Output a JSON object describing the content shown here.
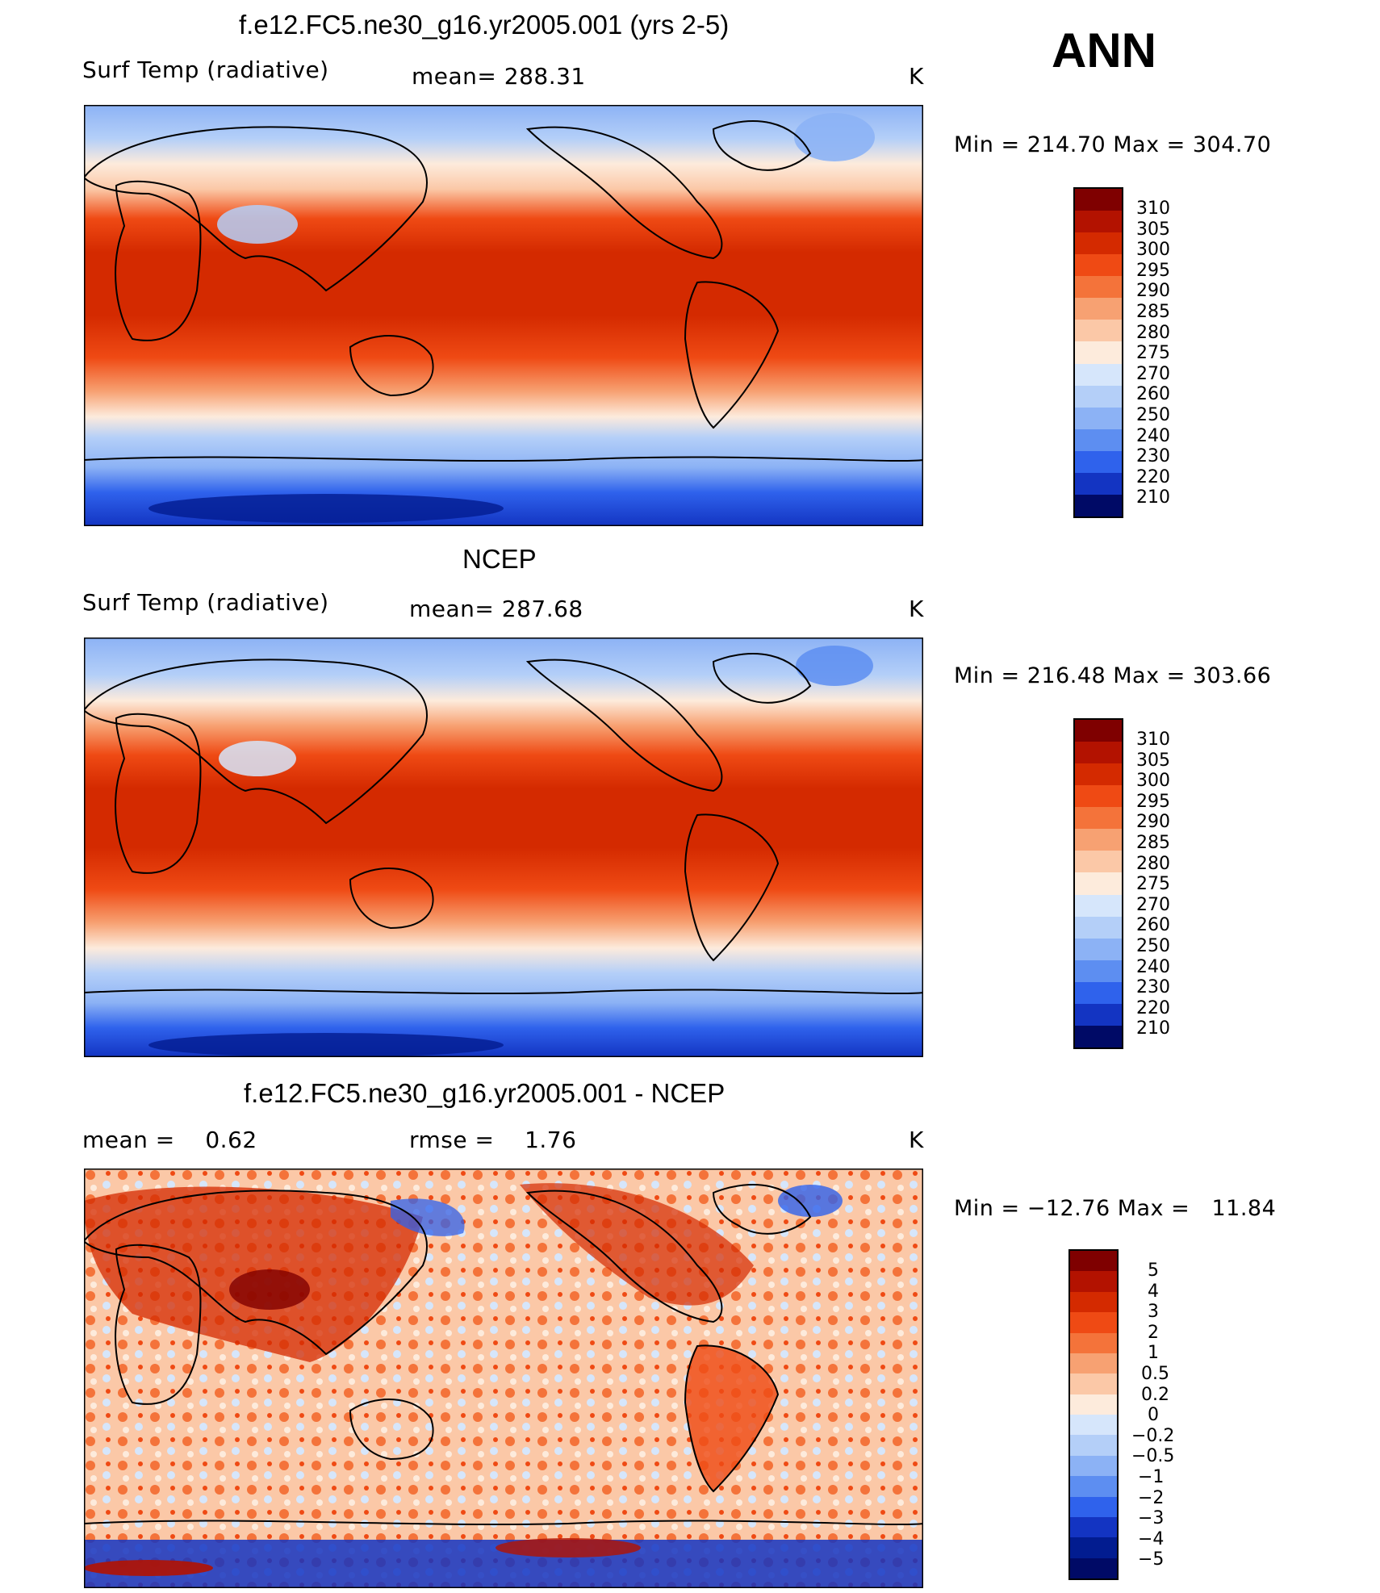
{
  "season": "ANN",
  "panels": [
    {
      "title": "f.e12.FC5.ne30_g16.yr2005.001 (yrs 2-5)",
      "left_label": "Surf Temp (radiative)",
      "center_label": "mean= 288.31",
      "units": "K",
      "min_max": "Min = 214.70 Max = 304.70",
      "colorbar_labels": [
        "310",
        "305",
        "300",
        "295",
        "290",
        "285",
        "280",
        "275",
        "270",
        "260",
        "250",
        "240",
        "230",
        "220",
        "210"
      ]
    },
    {
      "title": "NCEP",
      "left_label": "Surf Temp (radiative)",
      "center_label": "mean= 287.68",
      "units": "K",
      "min_max": "Min = 216.48 Max = 303.66",
      "colorbar_labels": [
        "310",
        "305",
        "300",
        "295",
        "290",
        "285",
        "280",
        "275",
        "270",
        "260",
        "250",
        "240",
        "230",
        "220",
        "210"
      ]
    },
    {
      "title": "f.e12.FC5.ne30_g16.yr2005.001 - NCEP",
      "left_label": "mean =    0.62",
      "center_label": "rmse =    1.76",
      "units": "K",
      "min_max": "Min = −12.76 Max =   11.84",
      "colorbar_labels": [
        "5",
        "4",
        "3",
        "2",
        "1",
        "0.5",
        "0.2",
        "0",
        "−0.2",
        "−0.5",
        "−1",
        "−2",
        "−3",
        "−4",
        "−5"
      ]
    }
  ],
  "colors": {
    "scale": [
      "#7f0000",
      "#b31200",
      "#d42a00",
      "#ef4a14",
      "#f4733a",
      "#f7a172",
      "#fbc8a7",
      "#fdebdc",
      "#d6e6fb",
      "#b4cff8",
      "#8cb2f5",
      "#5d8ef1",
      "#2f62ec",
      "#1334c2",
      "#021c90",
      "#000a66"
    ],
    "coast": "#000000"
  }
}
